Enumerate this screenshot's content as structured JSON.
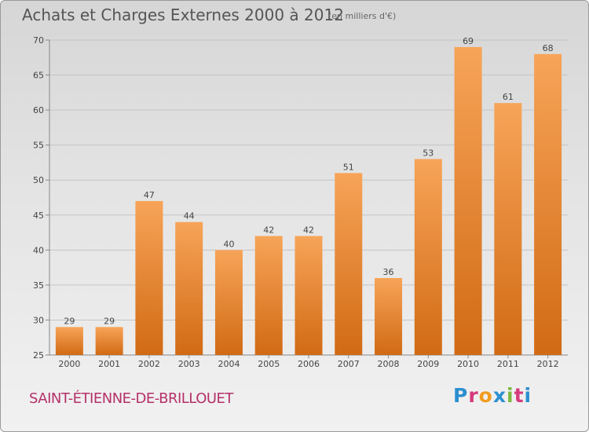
{
  "header": {
    "title": "Achats et Charges Externes 2000 à 2012",
    "unit": "(en milliers d'€)"
  },
  "footer": {
    "commune": "SAINT-ÉTIENNE-DE-BRILLOUET",
    "logo_letters": [
      {
        "char": "P",
        "color": "#2b8fd0"
      },
      {
        "char": "r",
        "color": "#d63a7c"
      },
      {
        "char": "o",
        "color": "#f29c1f"
      },
      {
        "char": "x",
        "color": "#2b8fd0"
      },
      {
        "char": "i",
        "color": "#7cb940"
      },
      {
        "char": "t",
        "color": "#d63a7c"
      },
      {
        "char": "i",
        "color": "#2b8fd0"
      }
    ]
  },
  "colors": {
    "bar_light": "#f7a458",
    "bar_dark": "#d16a14",
    "grid": "#c4c4c4",
    "axis_text": "#444444"
  },
  "chart_data": {
    "type": "bar",
    "categories": [
      "2000",
      "2001",
      "2002",
      "2003",
      "2004",
      "2005",
      "2006",
      "2007",
      "2008",
      "2009",
      "2010",
      "2011",
      "2012"
    ],
    "values": [
      29,
      29,
      47,
      44,
      40,
      42,
      42,
      51,
      36,
      53,
      69,
      61,
      68
    ],
    "title": "Achats et Charges Externes 2000 à 2012",
    "ylim": [
      25,
      70
    ],
    "yticks": [
      25,
      30,
      35,
      40,
      45,
      50,
      55,
      60,
      65,
      70
    ],
    "grid": true,
    "data_labels": true
  }
}
